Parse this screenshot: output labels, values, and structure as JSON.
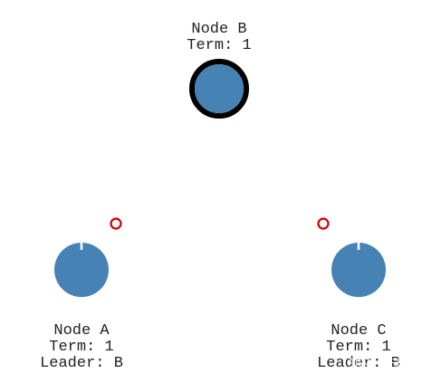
{
  "diagram": {
    "colors": {
      "node_fill": "#4682b4",
      "leader_ring": "#000000",
      "message": "#cc0000",
      "timeout_tick": "#ffffff",
      "text": "#222222"
    },
    "nodes": [
      {
        "id": "B",
        "name": "Node B",
        "term": "Term: 1",
        "leader": "",
        "role": "leader",
        "timeout_remaining": 1.0
      },
      {
        "id": "A",
        "name": "Node A",
        "term": "Term: 1",
        "leader": "Leader: B",
        "role": "follower",
        "timeout_remaining": 0.97
      },
      {
        "id": "C",
        "name": "Node C",
        "term": "Term: 1",
        "leader": "Leader: B",
        "role": "follower",
        "timeout_remaining": 0.98
      }
    ],
    "messages": [
      {
        "from": "B",
        "to": "A",
        "kind": "heartbeat"
      },
      {
        "from": "B",
        "to": "C",
        "kind": "heartbeat"
      }
    ],
    "watermark": {
      "text": "知乎 @无知影"
    }
  }
}
